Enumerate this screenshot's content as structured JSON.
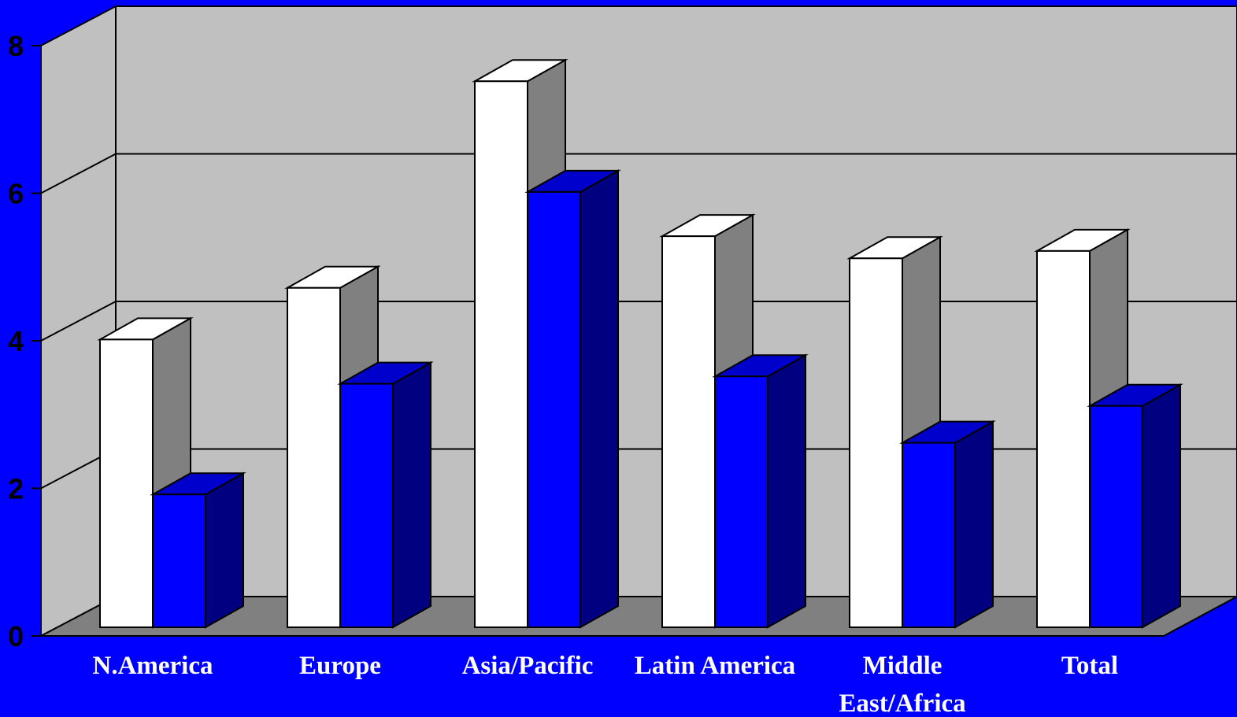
{
  "chart_data": {
    "type": "bar",
    "categories": [
      "N.America",
      "Europe",
      "Asia/Pacific",
      "Latin America",
      "Middle\nEast/Africa",
      "Total"
    ],
    "series": [
      {
        "values": [
          3.9,
          4.6,
          7.4,
          5.3,
          5.0,
          5.1
        ]
      },
      {
        "values": [
          1.8,
          3.3,
          5.9,
          3.4,
          2.5,
          3.0
        ]
      }
    ],
    "ylim": [
      0,
      8
    ],
    "yticks": [
      0,
      2,
      4,
      6,
      8
    ],
    "grid": true,
    "colors": {
      "background": "#0000ff",
      "wall": "#c0c0c0",
      "floor": "#808080",
      "series_front": [
        "#ffffff",
        "#0000ff"
      ],
      "series_side": [
        "#808080",
        "#000080"
      ],
      "series_top": [
        "#ffffff",
        "#0000cc"
      ]
    }
  }
}
